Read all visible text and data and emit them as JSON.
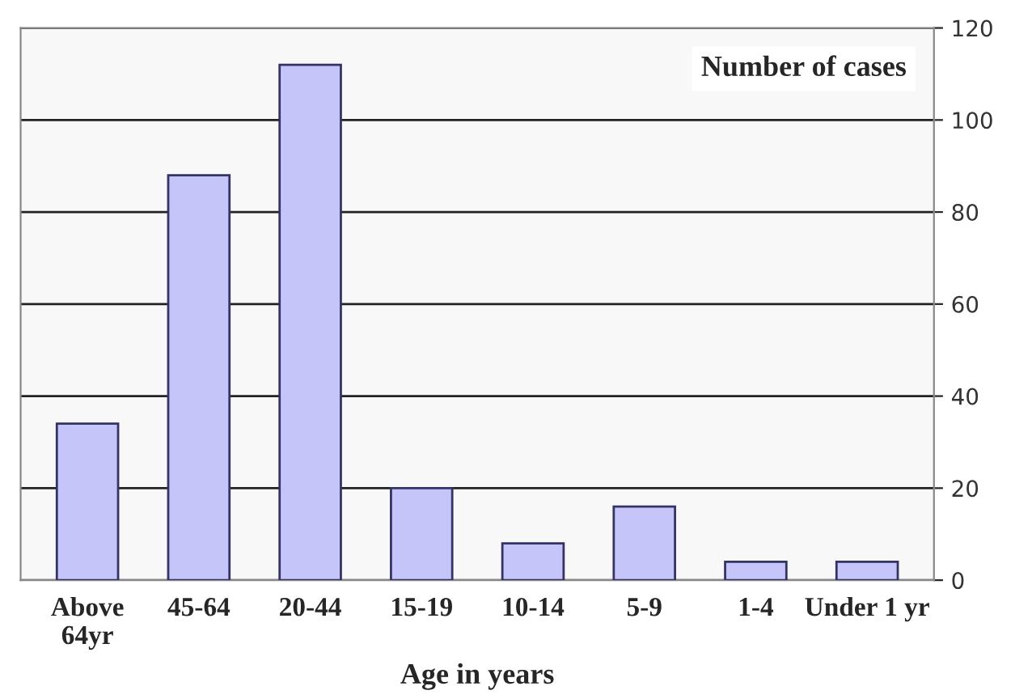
{
  "chart_data": {
    "type": "bar",
    "title": "Number of cases",
    "xlabel": "Age in years",
    "categories": [
      "Above\n64yr",
      "45-64",
      "20-44",
      "15-19",
      "10-14",
      "5-9",
      "1-4",
      "Under 1 yr"
    ],
    "values": [
      34,
      88,
      112,
      20,
      8,
      16,
      4,
      4
    ],
    "color": "#c5c5fa",
    "ylim": [
      0,
      120
    ],
    "yticks": [
      0,
      20,
      40,
      60,
      80,
      100,
      120
    ],
    "grid": "y"
  }
}
